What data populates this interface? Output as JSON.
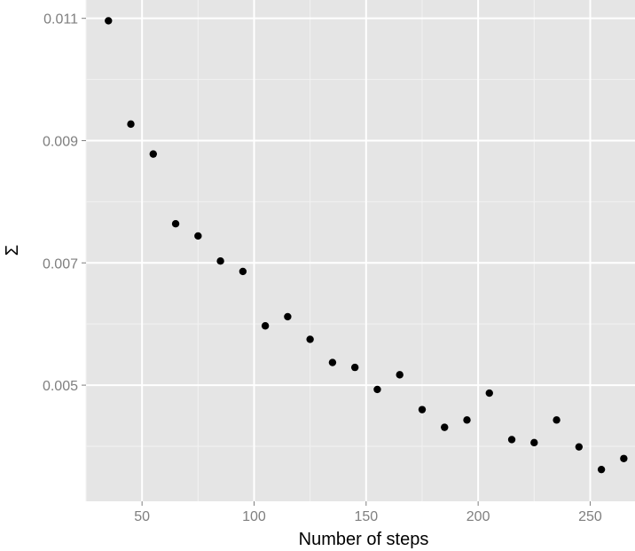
{
  "chart_data": {
    "type": "scatter",
    "xlabel": "Number of steps",
    "ylabel": "Σ",
    "xlim": [
      25,
      270
    ],
    "ylim": [
      0.0031,
      0.0113
    ],
    "x_ticks": [
      50,
      100,
      150,
      200,
      250
    ],
    "y_ticks": [
      0.005,
      0.007,
      0.009,
      0.011
    ],
    "x_tick_labels": [
      "50",
      "100",
      "150",
      "200",
      "250"
    ],
    "y_tick_labels": [
      "0.005",
      "0.007",
      "0.009",
      "0.011"
    ],
    "grid": true,
    "colors": {
      "panel": "#e5e5e5",
      "grid_major": "#ffffff",
      "grid_minor": "#f2f2f2",
      "point": "#000000"
    },
    "points": [
      {
        "x": 35,
        "y": 0.01096
      },
      {
        "x": 45,
        "y": 0.00927
      },
      {
        "x": 55,
        "y": 0.00878
      },
      {
        "x": 65,
        "y": 0.00764
      },
      {
        "x": 75,
        "y": 0.00744
      },
      {
        "x": 85,
        "y": 0.00703
      },
      {
        "x": 95,
        "y": 0.00686
      },
      {
        "x": 105,
        "y": 0.00597
      },
      {
        "x": 115,
        "y": 0.00612
      },
      {
        "x": 125,
        "y": 0.00575
      },
      {
        "x": 135,
        "y": 0.00537
      },
      {
        "x": 145,
        "y": 0.00529
      },
      {
        "x": 155,
        "y": 0.00493
      },
      {
        "x": 165,
        "y": 0.00517
      },
      {
        "x": 175,
        "y": 0.0046
      },
      {
        "x": 185,
        "y": 0.00431
      },
      {
        "x": 195,
        "y": 0.00443
      },
      {
        "x": 205,
        "y": 0.00487
      },
      {
        "x": 215,
        "y": 0.00411
      },
      {
        "x": 225,
        "y": 0.00406
      },
      {
        "x": 235,
        "y": 0.00443
      },
      {
        "x": 245,
        "y": 0.00399
      },
      {
        "x": 255,
        "y": 0.00362
      },
      {
        "x": 265,
        "y": 0.0038
      }
    ]
  }
}
